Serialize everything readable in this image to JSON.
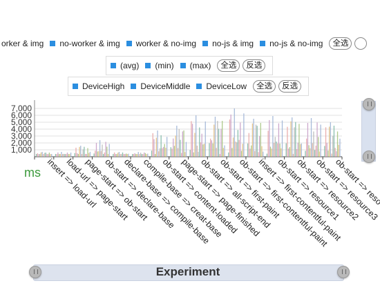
{
  "legends": {
    "group_row": {
      "items": [
        "orker & img",
        "no-worker & img",
        "worker & no-img",
        "no-js & img",
        "no-js & no-img"
      ],
      "select_all": "全选"
    },
    "stat_row": {
      "items": [
        "(avg)",
        "(min)",
        "(max)"
      ],
      "select_all": "全选",
      "invert": "反选"
    },
    "device_row": {
      "items": [
        "DeviceHigh",
        "DeviceMiddle",
        "DeviceLow"
      ],
      "select_all": "全选",
      "invert": "反选"
    }
  },
  "colors": {
    "legend_marker": "#2b8ee0",
    "bars": [
      "#7fb8a6",
      "#e8a6a6",
      "#c8a0c8",
      "#a6c47f",
      "#e6c07f",
      "#9fb4d6",
      "#d9b0a0",
      "#b8b8b8"
    ],
    "unit_label": "#3c9a3c"
  },
  "chart_data": {
    "type": "bar",
    "categories": [
      "insert => load-url",
      "load-url => page-start",
      "page-start => ob-start",
      "ob-start => declare-base",
      "declare-base => compile-base",
      "compile-base => creat-base",
      "ob-start => content-loaded",
      "page-start => page-finished",
      "ob-start => all-script-end",
      "ob-start => first-paint",
      "ob-start => first-contentful-paint",
      "insert => first-contentful-paint",
      "ob-start => resource1",
      "ob-start => resource2",
      "ob-start => resource3",
      "ob-start => reso"
    ],
    "y_ticks": [
      "1,000",
      "2,000",
      "3,000",
      "4,000",
      "5,000",
      "6,000",
      "7,000"
    ],
    "ylim": [
      0,
      8000
    ],
    "unit": "ms",
    "xlabel": "Experiment",
    "grid": true,
    "approx_max_values": [
      700,
      700,
      1600,
      2400,
      700,
      700,
      3800,
      4500,
      6000,
      5800,
      7000,
      5500,
      5900,
      5700,
      5600,
      5000
    ]
  },
  "ui": {
    "unit_label": "ms",
    "x_axis_title": "Experiment"
  }
}
